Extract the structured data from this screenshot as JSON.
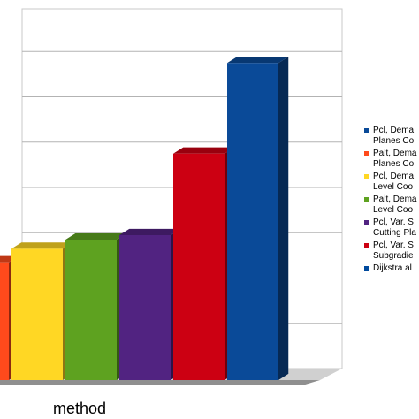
{
  "chart_data": {
    "type": "bar",
    "three_d": true,
    "xlabel": "method",
    "ylabel": "",
    "grid": true,
    "legend_position": "right",
    "series": [
      {
        "name": "Pcl, Dema\nPlanes Co",
        "color": "#0a4a98",
        "value": 350
      },
      {
        "name": "Palt, Dema\nPlanes Co",
        "color": "#ff4a1c",
        "value": 130
      },
      {
        "name": "Pcl, Dema\nLevel Coo",
        "color": "#ffd724",
        "value": 145
      },
      {
        "name": "Palt, Dema\nLevel Coo",
        "color": "#5ea220",
        "value": 155
      },
      {
        "name": "Pcl, Var. S\nCutting Pla",
        "color": "#512381",
        "value": 160
      },
      {
        "name": "Pcl, Var. S\nSubgradie",
        "color": "#cc0012",
        "value": 250
      },
      {
        "name": "Dijkstra al",
        "color": "#004a9d",
        "value": null
      }
    ],
    "bar_order": [
      1,
      2,
      3,
      4,
      5,
      0
    ],
    "ylim": [
      0,
      400
    ]
  }
}
